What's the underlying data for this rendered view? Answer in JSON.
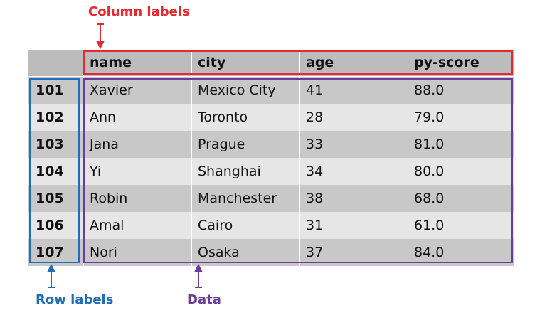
{
  "annotations": {
    "column_labels": "Column labels",
    "row_labels": "Row labels",
    "data": "Data"
  },
  "colors": {
    "column_labels": "#e8292f",
    "row_labels": "#1f6fb8",
    "data": "#6a3d9a",
    "header_bg": "#bcbcbc",
    "row_dark": "#c8c8c8",
    "row_light": "#e6e6e6"
  },
  "table": {
    "columns": [
      "name",
      "city",
      "age",
      "py-score"
    ],
    "rows": [
      {
        "index": "101",
        "values": [
          "Xavier",
          "Mexico City",
          "41",
          "88.0"
        ]
      },
      {
        "index": "102",
        "values": [
          "Ann",
          "Toronto",
          "28",
          "79.0"
        ]
      },
      {
        "index": "103",
        "values": [
          "Jana",
          "Prague",
          "33",
          "81.0"
        ]
      },
      {
        "index": "104",
        "values": [
          "Yi",
          "Shanghai",
          "34",
          "80.0"
        ]
      },
      {
        "index": "105",
        "values": [
          "Robin",
          "Manchester",
          "38",
          "68.0"
        ]
      },
      {
        "index": "106",
        "values": [
          "Amal",
          "Cairo",
          "31",
          "61.0"
        ]
      },
      {
        "index": "107",
        "values": [
          "Nori",
          "Osaka",
          "37",
          "84.0"
        ]
      }
    ]
  }
}
